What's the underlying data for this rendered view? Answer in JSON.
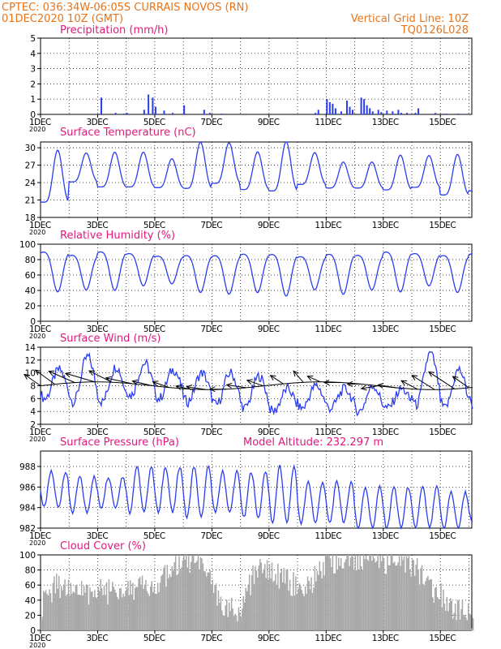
{
  "header": {
    "line1": "CPTEC:   036:34W-06:05S   CURRAIS NOVOS (RN)",
    "line2": "01DEC2020 10Z (GMT)",
    "grid_note": "Vertical Grid Line: 10Z",
    "code": "TQ0126L028"
  },
  "colors": {
    "line": "#2b3df0",
    "cloud": "#a8a8a8",
    "header": "#e8741a",
    "title": "#e0197d",
    "arrow": "#000000"
  },
  "chart_data": [
    {
      "id": "precip",
      "type": "bar",
      "title": "Precipitation (mm/h)",
      "ylim": [
        0,
        5
      ],
      "yticks": [
        0,
        1,
        2,
        3,
        4,
        5
      ],
      "xlim": [
        0,
        15.1
      ],
      "x_tick_labels": [
        "1DEC",
        "3DEC",
        "5DEC",
        "7DEC",
        "9DEC",
        "11DEC",
        "13DEC",
        "15DEC"
      ],
      "year_label": "2020",
      "x": [
        2.1,
        2.6,
        2.9,
        3.0,
        3.6,
        3.75,
        3.9,
        4.0,
        4.3,
        4.6,
        5.0,
        5.7,
        5.9,
        6.3,
        9.6,
        9.7,
        10.0,
        10.1,
        10.2,
        10.3,
        10.5,
        10.7,
        10.8,
        10.9,
        11.2,
        11.3,
        11.4,
        11.5,
        11.6,
        11.8,
        11.9,
        12.1,
        12.3,
        12.5,
        12.6,
        12.8,
        13.1,
        13.2,
        13.8,
        14.1,
        14.2,
        14.6
      ],
      "values": [
        1.1,
        0.1,
        0.05,
        0.1,
        0.3,
        1.3,
        1.1,
        0.5,
        0.25,
        0.1,
        0.6,
        0.3,
        0.1,
        0.05,
        0.1,
        0.3,
        1.0,
        0.8,
        0.7,
        0.4,
        0.2,
        0.9,
        0.5,
        0.3,
        1.1,
        1.0,
        0.6,
        0.4,
        0.2,
        0.3,
        0.15,
        0.25,
        0.2,
        0.3,
        0.1,
        0.1,
        0.1,
        0.4,
        0.1,
        0.05,
        0.05,
        0.05
      ]
    },
    {
      "id": "temp",
      "type": "line",
      "title": "Surface Temperature (nC)",
      "ylim": [
        18,
        31
      ],
      "yticks": [
        18,
        21,
        24,
        27,
        30
      ],
      "xlim": [
        0,
        15.1
      ],
      "x_tick_labels": [
        "1DEC",
        "3DEC",
        "5DEC",
        "7DEC",
        "9DEC",
        "11DEC",
        "13DEC",
        "15DEC"
      ],
      "year_label": "2020",
      "daily_min": [
        19.5,
        23.5,
        22.5,
        22.5,
        22.5,
        22.0,
        23.0,
        22.0,
        21.5,
        23.0,
        22.5,
        22.5,
        22.0,
        22.5,
        21.0,
        21.5
      ],
      "daily_max": [
        28.5,
        28.5,
        28.5,
        28.5,
        27.5,
        30.0,
        30.0,
        28.5,
        30.0,
        28.5,
        27.0,
        27.0,
        28.0,
        28.0,
        28.0,
        30.0
      ]
    },
    {
      "id": "rh",
      "type": "line",
      "title": "Relative Humidity (%)",
      "ylim": [
        0,
        100
      ],
      "yticks": [
        0,
        20,
        40,
        60,
        80,
        100
      ],
      "xlim": [
        0,
        15.1
      ],
      "x_tick_labels": [
        "1DEC",
        "3DEC",
        "5DEC",
        "7DEC",
        "9DEC",
        "11DEC",
        "13DEC",
        "15DEC"
      ],
      "year_label": "2020",
      "daily_max": [
        95,
        90,
        95,
        92,
        88,
        90,
        90,
        92,
        92,
        88,
        92,
        90,
        95,
        92,
        90,
        93
      ],
      "daily_min": [
        43,
        45,
        45,
        50,
        52,
        42,
        40,
        42,
        38,
        45,
        40,
        45,
        43,
        50,
        42,
        38
      ]
    },
    {
      "id": "wind",
      "type": "line",
      "title": "Surface Wind (m/s)",
      "ylim": [
        2,
        14
      ],
      "yticks": [
        2,
        4,
        6,
        8,
        10,
        12,
        14
      ],
      "xlim": [
        0,
        15.1
      ],
      "x_tick_labels": [
        "1DEC",
        "3DEC",
        "5DEC",
        "7DEC",
        "9DEC",
        "11DEC",
        "13DEC",
        "15DEC"
      ],
      "year_label": "2020",
      "daily_max": [
        10.5,
        12.5,
        11.0,
        11.5,
        10.5,
        10.0,
        10.0,
        9.5,
        7.5,
        8.0,
        7.5,
        8.0,
        7.5,
        13.0,
        10.5,
        11.5
      ],
      "daily_min": [
        6.0,
        5.5,
        5.5,
        6.5,
        6.0,
        5.5,
        5.0,
        4.5,
        4.0,
        4.5,
        4.5,
        4.0,
        4.5,
        5.0,
        4.5,
        5.0
      ],
      "arrow_days": [
        0.0,
        0.5,
        1.2,
        1.9,
        2.5,
        3.2,
        3.9,
        4.5,
        5.2,
        5.8,
        6.5,
        7.2,
        7.8,
        8.5,
        9.2,
        9.8,
        10.5,
        11.2,
        11.8,
        12.5,
        13.2,
        13.8,
        14.5,
        15.0
      ],
      "arrow_dx": [
        -0.5,
        -0.6,
        -0.8,
        -0.9,
        -0.7,
        -0.8,
        -0.6,
        -0.5,
        -0.4,
        -0.6,
        -0.5,
        -0.6,
        -0.5,
        -0.4,
        -0.3,
        -0.4,
        -0.5,
        -0.4,
        -0.5,
        -0.6,
        -0.5,
        -0.7,
        -0.8,
        -0.5
      ],
      "arrow_dy": [
        2.0,
        2.5,
        2.0,
        1.5,
        2.0,
        1.0,
        0.8,
        1.0,
        0.5,
        0.5,
        0.0,
        0.5,
        1.0,
        1.5,
        2.0,
        1.0,
        0.0,
        0.0,
        -0.5,
        0.5,
        1.5,
        2.5,
        3.0,
        2.0
      ]
    },
    {
      "id": "pressure",
      "type": "line",
      "title": "Surface Pressure (hPa)",
      "subtitle": "Model Altitude: 232.297 m",
      "ylim": [
        982,
        989.5
      ],
      "yticks": [
        982,
        984,
        986,
        988
      ],
      "xlim": [
        0,
        15.1
      ],
      "x_tick_labels": [
        "1DEC",
        "3DEC",
        "5DEC",
        "7DEC",
        "9DEC",
        "11DEC",
        "13DEC",
        "15DEC"
      ],
      "year_label": "2020",
      "daily_max": [
        987.5,
        987.0,
        987.0,
        988.0,
        988.0,
        988.0,
        987.5,
        987.5,
        988.0,
        986.5,
        986.5,
        986.0,
        986.0,
        986.0,
        985.5,
        985.0
      ],
      "daily_min": [
        984.0,
        983.5,
        984.0,
        983.5,
        983.5,
        983.0,
        983.5,
        983.0,
        982.5,
        982.5,
        982.5,
        982.0,
        982.0,
        982.0,
        982.0,
        982.5
      ]
    },
    {
      "id": "cloud",
      "type": "area",
      "title": "Cloud Cover (%)",
      "ylim": [
        0,
        100
      ],
      "yticks": [
        0,
        20,
        40,
        60,
        80,
        100
      ],
      "xlim": [
        0,
        15.1
      ],
      "x_tick_labels": [
        "1DEC",
        "3DEC",
        "5DEC",
        "7DEC",
        "9DEC",
        "11DEC",
        "13DEC",
        "15DEC"
      ],
      "year_label": "2020",
      "day_x": [
        0,
        0.5,
        1,
        1.5,
        2,
        2.5,
        3,
        3.5,
        4,
        4.5,
        5,
        5.5,
        6,
        6.5,
        7,
        7.5,
        8,
        8.5,
        9,
        9.5,
        10,
        10.5,
        11,
        11.5,
        12,
        12.5,
        13,
        13.5,
        14,
        14.5,
        15
      ],
      "day_level": [
        30,
        60,
        55,
        50,
        55,
        50,
        60,
        55,
        60,
        75,
        90,
        85,
        60,
        25,
        30,
        80,
        75,
        70,
        55,
        65,
        90,
        95,
        95,
        95,
        92,
        90,
        88,
        60,
        45,
        30,
        20
      ]
    }
  ]
}
